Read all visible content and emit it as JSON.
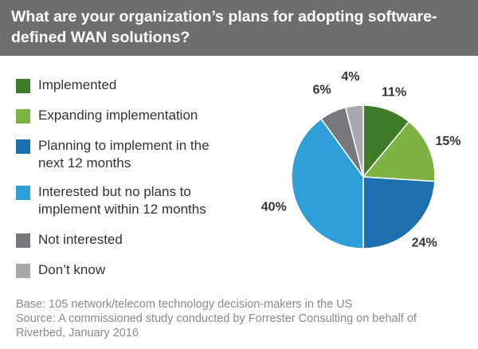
{
  "title": "What are your organization’s plans for adopting software-defined WAN solutions?",
  "colors": {
    "header_bg": "#6d6e70",
    "implemented": "#3f7c27",
    "expanding": "#7cb342",
    "planning": "#1e6fb0",
    "interested": "#2e9fd9",
    "not_interested": "#77787b",
    "dont_know": "#a7a9ac"
  },
  "chart_data": {
    "type": "pie",
    "title": "What are your organization’s plans for adopting software-defined WAN solutions?",
    "slices": [
      {
        "label": "Implemented",
        "value": 11,
        "display": "11%",
        "color": "#3f7c27"
      },
      {
        "label": "Expanding implementation",
        "value": 15,
        "display": "15%",
        "color": "#7cb342"
      },
      {
        "label": "Planning to implement in the next 12 months",
        "value": 24,
        "display": "24%",
        "color": "#1e6fb0"
      },
      {
        "label": "Interested but no plans to implement within 12 months",
        "value": 40,
        "display": "40%",
        "color": "#2e9fd9"
      },
      {
        "label": "Not interested",
        "value": 6,
        "display": "6%",
        "color": "#77787b"
      },
      {
        "label": "Don’t know",
        "value": 4,
        "display": "4%",
        "color": "#a7a9ac"
      }
    ],
    "legend_position": "left"
  },
  "legend": [
    {
      "line1": "Implemented",
      "line2": ""
    },
    {
      "line1": "Expanding implementation",
      "line2": ""
    },
    {
      "line1": "Planning to implement in the",
      "line2": "next 12 months"
    },
    {
      "line1": "Interested but no plans to",
      "line2": "implement within 12 months"
    },
    {
      "line1": "Not interested",
      "line2": ""
    },
    {
      "line1": "Don’t know",
      "line2": ""
    }
  ],
  "footer": {
    "base": "Base: 105 network/telecom technology decision-makers in the US",
    "source_line1": "Source: A commissioned study conducted by Forrester Consulting on behalf of",
    "source_line2": "Riverbed, January 2016"
  }
}
